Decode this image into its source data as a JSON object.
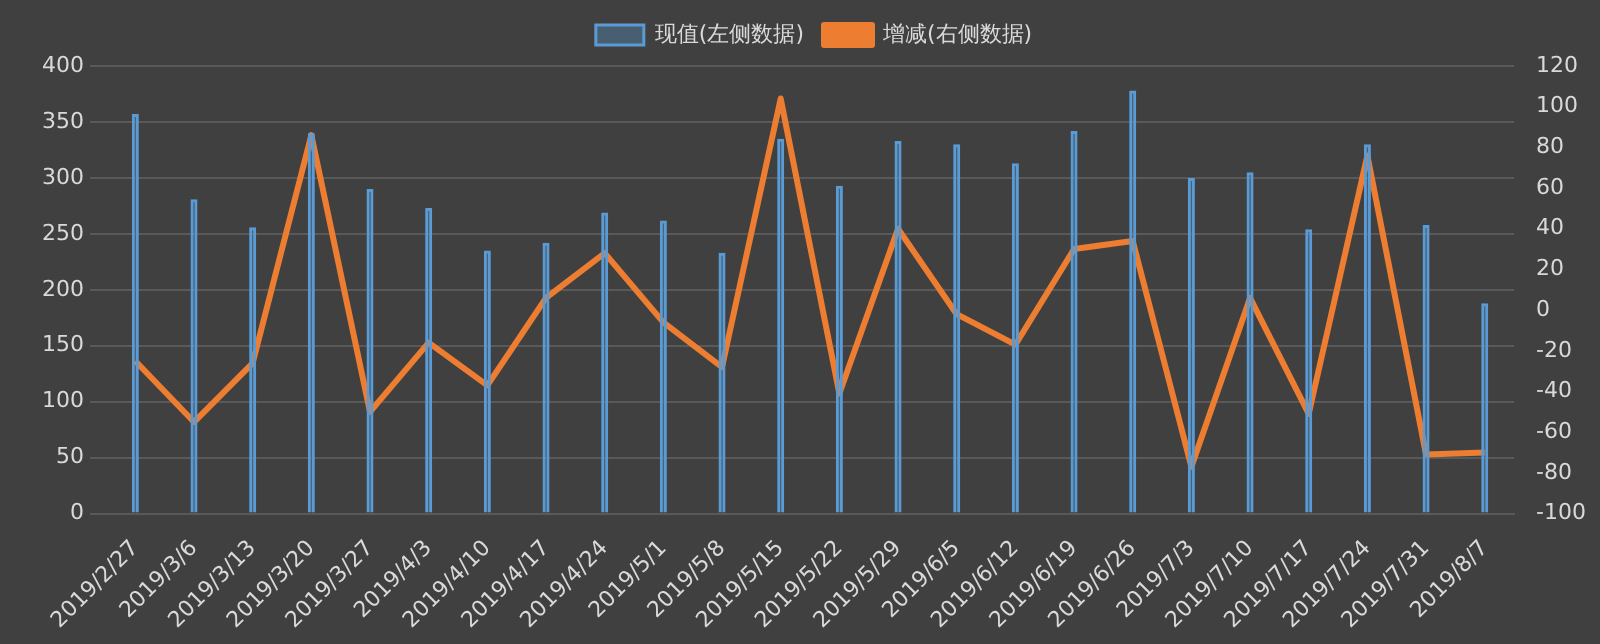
{
  "chart_data": {
    "type": "bar",
    "categories": [
      "2019/2/27",
      "2019/3/6",
      "2019/3/13",
      "2019/3/20",
      "2019/3/27",
      "2019/4/3",
      "2019/4/10",
      "2019/4/17",
      "2019/4/24",
      "2019/5/1",
      "2019/5/8",
      "2019/5/15",
      "2019/5/22",
      "2019/5/29",
      "2019/6/5",
      "2019/6/12",
      "2019/6/19",
      "2019/6/26",
      "2019/7/3",
      "2019/7/10",
      "2019/7/17",
      "2019/7/24",
      "2019/7/31",
      "2019/8/7"
    ],
    "series": [
      {
        "name": "现值(左侧数据)",
        "color": "#5b9bd5",
        "values": [
          357,
          281,
          256,
          340,
          290,
          273,
          235,
          242,
          269,
          262,
          233,
          335,
          293,
          333,
          330,
          313,
          342,
          378,
          300,
          305,
          254,
          330,
          258,
          188
        ]
      },
      {
        "name": "增减(右侧数据)",
        "type": "line",
        "axis": "y2",
        "color": "#ed7d31",
        "values": [
          -25,
          -55,
          -26,
          86,
          -50,
          -16,
          -37,
          6,
          28,
          -6,
          -28,
          104,
          -41,
          40,
          -2,
          -17,
          30,
          34,
          -77,
          6,
          -51,
          76,
          -71,
          -70
        ]
      }
    ],
    "ylim": [
      0,
      400
    ],
    "yticks": [
      0,
      50,
      100,
      150,
      200,
      250,
      300,
      350,
      400
    ],
    "y2lim": [
      -100,
      120
    ],
    "y2ticks": [
      -100,
      -80,
      -60,
      -40,
      -20,
      0,
      20,
      40,
      60,
      80,
      100,
      120
    ],
    "grid": "y",
    "legend": "top",
    "marker": "none"
  }
}
